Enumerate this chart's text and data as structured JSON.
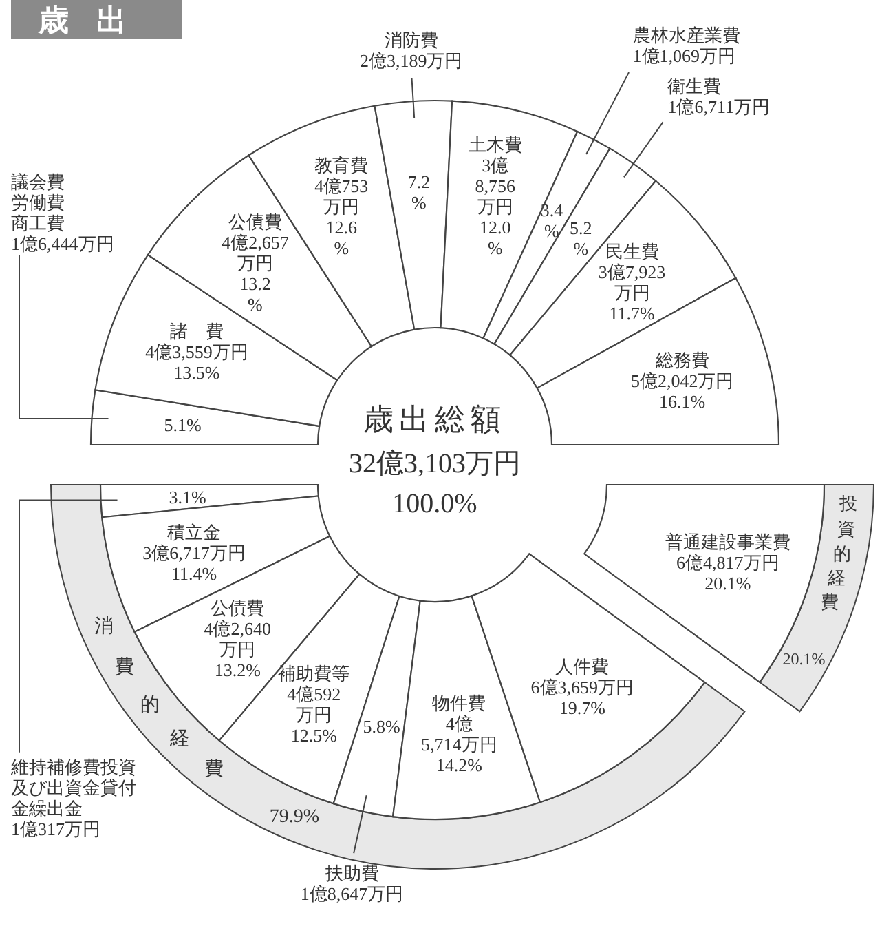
{
  "chart_data": [
    {
      "type": "donut",
      "title": "歳出",
      "categories": [
        "議会費労働費商工費\n1億6,444万円",
        "諸　費\n4億3,559万円",
        "公債費\n4億2,657\n万円",
        "教育費\n4億753\n万円",
        "消防費\n2億3,189万円",
        "土木費\n3億\n8,756\n万円",
        "農林水産業費\n1億1,069万円",
        "衛生費\n1億6,711万円",
        "民生費\n3億7,923\n万円",
        "総務費\n5億2,042万円"
      ],
      "values": [
        5.1,
        13.5,
        13.2,
        12.6,
        7.2,
        12.0,
        3.4,
        5.2,
        11.7,
        16.1
      ],
      "value_labels": [
        "5.1%",
        "13.5%",
        "13.2\n%",
        "12.6\n%",
        "7.2\n%",
        "12.0\n%",
        "3.4\n%",
        "5.2\n%",
        "11.7%",
        "16.1%"
      ],
      "colors": [
        "#ffffff",
        "#ffffff",
        "#ffffff",
        "#ffffff",
        "#ffffff",
        "#ffffff",
        "#ffffff",
        "#ffffff",
        "#ffffff",
        "#ffffff"
      ],
      "annotations": [
        "歳出総額",
        "32億3,103万円"
      ]
    },
    {
      "type": "donut",
      "categories": [
        "維持補修費投資及び出資金貸付金繰出金\n1億317万円",
        "積立金\n3億6,717万円",
        "公債費\n4億2,640\n万円",
        "補助費等\n4億592\n万円",
        "扶助費\n1億8,647万円",
        "物件費\n4億\n5,714万円",
        "人件費\n6億3,659万円",
        "普通建設事業費\n6億4,817万円"
      ],
      "values": [
        3.1,
        11.4,
        13.2,
        12.5,
        5.8,
        14.2,
        19.7,
        20.1
      ],
      "value_labels": [
        "3.1%",
        "11.4%",
        "13.2%",
        "12.5%",
        "5.8%",
        "14.2%",
        "19.7%",
        "20.1%"
      ],
      "colors": [
        "#ffffff",
        "#ffffff",
        "#ffffff",
        "#ffffff",
        "#ffffff",
        "#ffffff",
        "#ffffff",
        "#ffffff"
      ],
      "annotations": [
        "消費的経費",
        "79.9%",
        "投資的経費",
        "20.1%",
        "100.0%"
      ]
    }
  ]
}
